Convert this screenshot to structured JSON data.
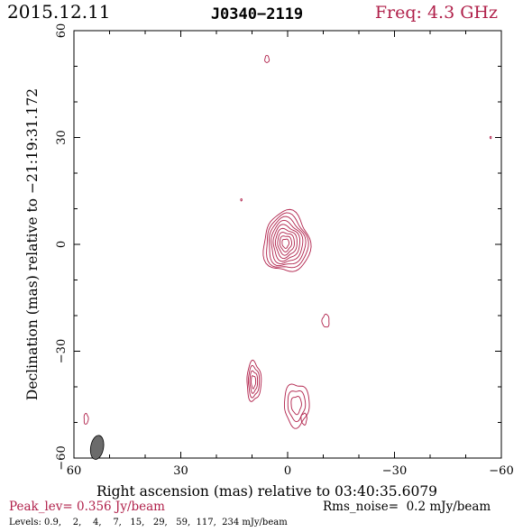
{
  "header": {
    "date": "2015.12.11",
    "source": "J0340−2119",
    "freq": "Freq: 4.3 GHz"
  },
  "footer": {
    "peak": "Peak_lev=  0.356 Jy/beam",
    "rms": "Rms_noise=  0.2 mJy/beam",
    "levels": "Levels: 0.9,    2,    4,    7,   15,   29,   59,  117,  234 mJy/beam"
  },
  "colors": {
    "contour": "#b0204a",
    "accent_text": "#b0204a",
    "axis": "#000000",
    "beam_fill": "#6b6b6b"
  },
  "chart_data": {
    "type": "contour",
    "xlabel": "Right ascension (mas) relative to 03:40:35.6079",
    "ylabel": "Declination (mas) relative to −21:19:31.172",
    "xlim": [
      60,
      -60
    ],
    "ylim": [
      -60,
      60
    ],
    "x_ticks": [
      60,
      30,
      0,
      -30,
      -60
    ],
    "y_ticks": [
      60,
      30,
      0,
      -30,
      -60
    ],
    "x_tick_labels": [
      "60",
      "30",
      "0",
      "−30",
      "−60"
    ],
    "y_tick_labels": [
      "60",
      "30",
      "0",
      "−30",
      "−60"
    ],
    "grid": false,
    "contour_levels_mJy": [
      0.9,
      2,
      4,
      7,
      15,
      29,
      59,
      117,
      234
    ],
    "peak_Jy_per_beam": 0.356,
    "rms_mJy_per_beam": 0.2,
    "components": [
      {
        "name": "core",
        "x": 0.3,
        "y": 0.5,
        "rx": 6.5,
        "ry": 8.5,
        "levels": 9
      },
      {
        "name": "jet-knot-east",
        "x": 9.5,
        "y": -38.5,
        "rx": 2.0,
        "ry": 5.5,
        "levels": 4
      },
      {
        "name": "jet-knot-south",
        "x": -2.5,
        "y": -45.0,
        "rx": 3.5,
        "ry": 6.0,
        "levels": 3
      },
      {
        "name": "jet-knot-small",
        "x": -4.6,
        "y": -49.0,
        "rx": 0.8,
        "ry": 1.6,
        "levels": 1
      },
      {
        "name": "knot-west",
        "x": -10.7,
        "y": -21.5,
        "rx": 1.0,
        "ry": 1.8,
        "levels": 1
      },
      {
        "name": "spot-north",
        "x": 5.8,
        "y": 52.0,
        "rx": 0.6,
        "ry": 1.0,
        "levels": 1
      },
      {
        "name": "spot-left",
        "x": 56.6,
        "y": -49.0,
        "rx": 0.6,
        "ry": 1.5,
        "levels": 1
      },
      {
        "name": "speck-1",
        "x": 13.0,
        "y": 12.5,
        "rx": 0.2,
        "ry": 0.3,
        "levels": 1
      },
      {
        "name": "speck-2",
        "x": -57.0,
        "y": 30.0,
        "rx": 0.2,
        "ry": 0.3,
        "levels": 1
      }
    ],
    "beam": {
      "x": 53.5,
      "y": -57.0,
      "major": 3.4,
      "minor": 1.8,
      "pa_deg": 10
    }
  }
}
